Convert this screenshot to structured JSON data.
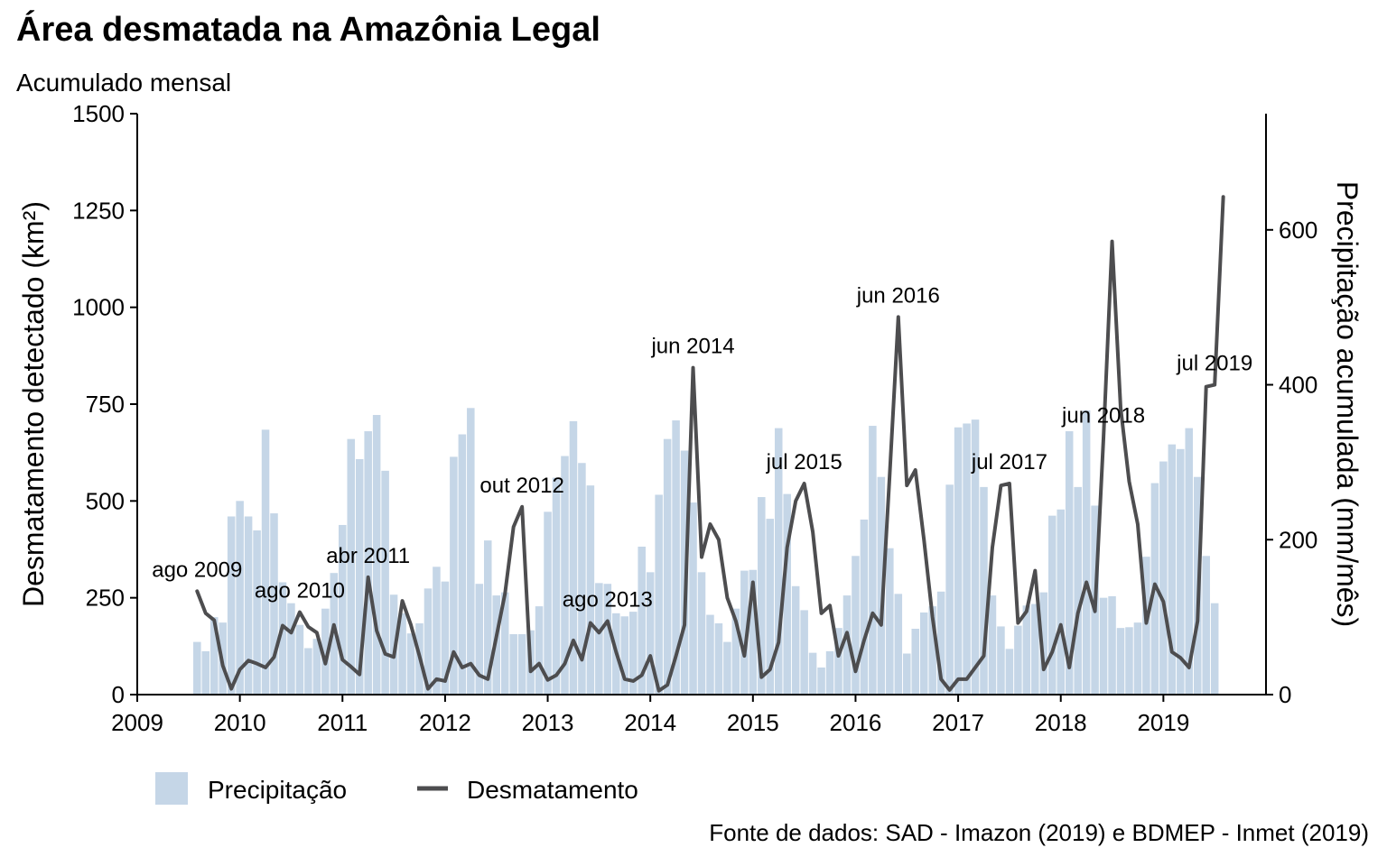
{
  "chart_data": {
    "type": "bar+line",
    "title": "Área desmatada na Amazônia Legal",
    "subtitle": "Acumulado mensal",
    "source": "Fonte de dados: SAD - Imazon (2019) e BDMEP - Inmet (2019)",
    "ylabel": "Desmatamento detectado (km²)",
    "y2label": "Precipitação acumulada (mm/mês)",
    "ylim": [
      0,
      1500
    ],
    "y_ticks": [
      0,
      250,
      500,
      750,
      1000,
      1250,
      1500
    ],
    "y2lim": [
      0,
      750
    ],
    "y2_ticks": [
      0,
      200,
      400,
      600
    ],
    "x_range": [
      "2009-01",
      "2020-01"
    ],
    "x_ticks": [
      "2009",
      "2010",
      "2011",
      "2012",
      "2013",
      "2014",
      "2015",
      "2016",
      "2017",
      "2018",
      "2019"
    ],
    "start_month": "2009-08",
    "colors": {
      "precipitation": "#c5d6e7",
      "deforestation": "#4d4d4f"
    },
    "legend": {
      "position": "bottom-left",
      "entries": [
        "Precipitação",
        "Desmatamento"
      ]
    },
    "series": [
      {
        "name": "Precipitação",
        "axis": "right",
        "kind": "bar",
        "values": [
          68,
          56,
          100,
          93,
          230,
          250,
          230,
          212,
          342,
          234,
          145,
          118,
          90,
          60,
          72,
          111,
          157,
          219,
          330,
          304,
          340,
          361,
          289,
          129,
          105,
          79,
          92,
          137,
          165,
          146,
          307,
          336,
          370,
          143,
          199,
          128,
          132,
          78,
          78,
          83,
          114,
          236,
          280,
          308,
          353,
          299,
          270,
          144,
          143,
          105,
          101,
          107,
          191,
          158,
          258,
          330,
          354,
          315,
          248,
          158,
          103,
          92,
          68,
          111,
          160,
          161,
          255,
          227,
          344,
          259,
          140,
          109,
          54,
          35,
          56,
          86,
          128,
          179,
          226,
          347,
          281,
          189,
          130,
          53,
          85,
          106,
          114,
          133,
          271,
          345,
          350,
          355,
          268,
          128,
          88,
          59,
          89,
          115,
          117,
          132,
          231,
          239,
          340,
          268,
          367,
          244,
          125,
          127,
          86,
          87,
          93,
          178,
          273,
          301,
          323,
          317,
          344,
          281,
          179,
          118
        ]
      },
      {
        "name": "Desmatamento",
        "axis": "left",
        "kind": "line",
        "values": [
          267,
          210,
          192,
          75,
          15,
          65,
          88,
          80,
          70,
          97,
          178,
          160,
          213,
          175,
          160,
          80,
          180,
          90,
          72,
          52,
          303,
          165,
          105,
          97,
          242,
          180,
          100,
          15,
          40,
          35,
          110,
          70,
          80,
          50,
          40,
          150,
          260,
          433,
          485,
          60,
          80,
          38,
          50,
          80,
          140,
          90,
          185,
          160,
          190,
          110,
          40,
          35,
          50,
          100,
          10,
          25,
          100,
          180,
          844,
          355,
          440,
          400,
          250,
          190,
          100,
          290,
          45,
          65,
          135,
          380,
          500,
          545,
          420,
          210,
          230,
          100,
          160,
          60,
          140,
          210,
          180,
          570,
          975,
          540,
          580,
          400,
          200,
          40,
          12,
          40,
          40,
          70,
          100,
          380,
          540,
          545,
          185,
          215,
          320,
          65,
          110,
          180,
          70,
          210,
          290,
          215,
          665,
          1170,
          740,
          550,
          440,
          185,
          285,
          240,
          110,
          95,
          70,
          190,
          795,
          800,
          1285
        ]
      }
    ],
    "annotations": [
      {
        "label": "ago 2009",
        "month": "2009-08"
      },
      {
        "label": "ago 2010",
        "month": "2010-08"
      },
      {
        "label": "abr 2011",
        "month": "2011-04"
      },
      {
        "label": "out 2012",
        "month": "2012-10"
      },
      {
        "label": "ago 2013",
        "month": "2013-08"
      },
      {
        "label": "jun 2014",
        "month": "2014-06"
      },
      {
        "label": "jul 2015",
        "month": "2015-07"
      },
      {
        "label": "jun 2016",
        "month": "2016-06"
      },
      {
        "label": "jul 2017",
        "month": "2017-07"
      },
      {
        "label": "jun 2018",
        "month": "2018-06"
      },
      {
        "label": "jul 2019",
        "month": "2019-07"
      }
    ]
  }
}
